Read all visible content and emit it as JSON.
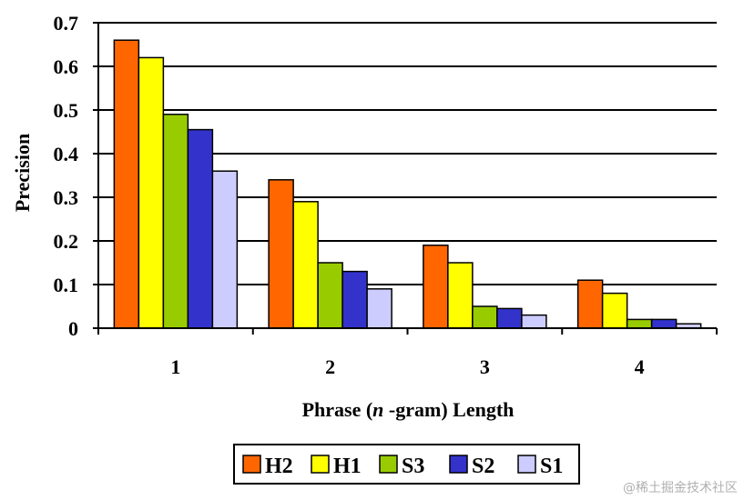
{
  "chart_data": {
    "type": "bar",
    "title": "",
    "xlabel_parts": [
      "Phrase (",
      "n",
      " -gram) Length"
    ],
    "ylabel": "Precision",
    "categories": [
      "1",
      "2",
      "3",
      "4"
    ],
    "ylim": [
      0,
      0.7
    ],
    "yticks": [
      "0",
      "0.1",
      "0.2",
      "0.3",
      "0.4",
      "0.5",
      "0.6",
      "0.7"
    ],
    "grid": true,
    "legend_position": "bottom",
    "series": [
      {
        "name": "H2",
        "color": "#ff6600",
        "values": [
          0.66,
          0.34,
          0.19,
          0.11
        ]
      },
      {
        "name": "H1",
        "color": "#ffff00",
        "values": [
          0.62,
          0.29,
          0.15,
          0.08
        ]
      },
      {
        "name": "S3",
        "color": "#99cc00",
        "values": [
          0.49,
          0.15,
          0.05,
          0.02
        ]
      },
      {
        "name": "S2",
        "color": "#3333cc",
        "values": [
          0.455,
          0.13,
          0.045,
          0.02
        ]
      },
      {
        "name": "S1",
        "color": "#ccccff",
        "values": [
          0.36,
          0.09,
          0.03,
          0.01
        ]
      }
    ]
  },
  "watermark": "@稀土掘金技术社区"
}
